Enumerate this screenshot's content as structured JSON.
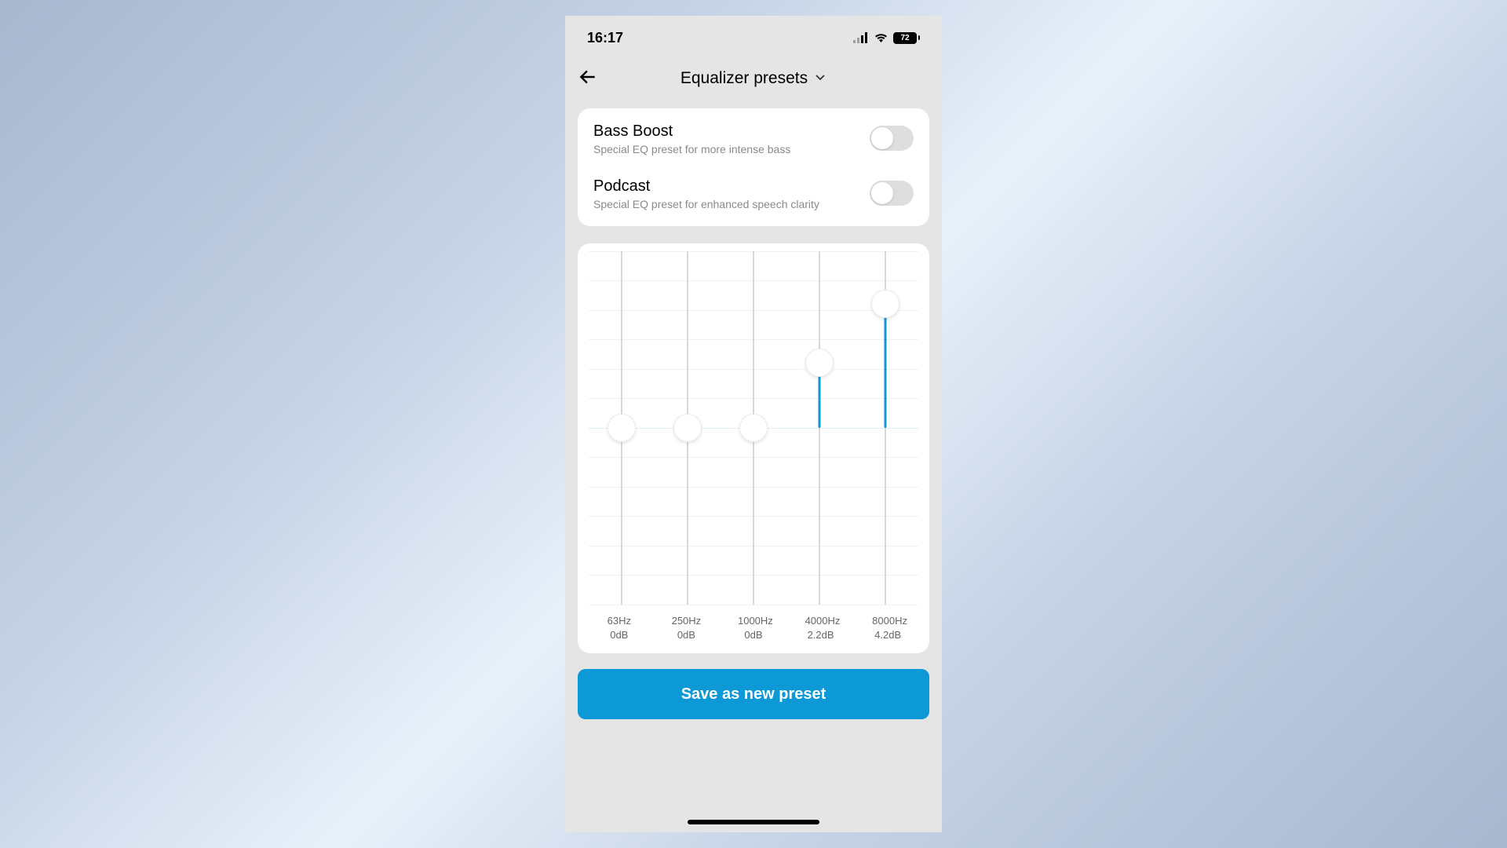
{
  "status": {
    "time": "16:17",
    "battery_pct": "72"
  },
  "header": {
    "title": "Equalizer presets"
  },
  "presets": [
    {
      "title": "Bass Boost",
      "desc": "Special EQ preset for more intense bass",
      "on": false
    },
    {
      "title": "Podcast",
      "desc": "Special EQ preset for enhanced speech clarity",
      "on": false
    }
  ],
  "equalizer": {
    "min_db": -6,
    "max_db": 6,
    "center_db": 0,
    "gridline_steps": 12,
    "accent_color": "#0d99d6",
    "bg_color": "#ffffff",
    "bands": [
      {
        "freq": "63Hz",
        "db": 0,
        "db_label": "0dB"
      },
      {
        "freq": "250Hz",
        "db": 0,
        "db_label": "0dB"
      },
      {
        "freq": "1000Hz",
        "db": 0,
        "db_label": "0dB"
      },
      {
        "freq": "4000Hz",
        "db": 2.2,
        "db_label": "2.2dB"
      },
      {
        "freq": "8000Hz",
        "db": 4.2,
        "db_label": "4.2dB"
      }
    ]
  },
  "save_button": {
    "label": "Save as new preset",
    "bg_color": "#0d99d6"
  }
}
